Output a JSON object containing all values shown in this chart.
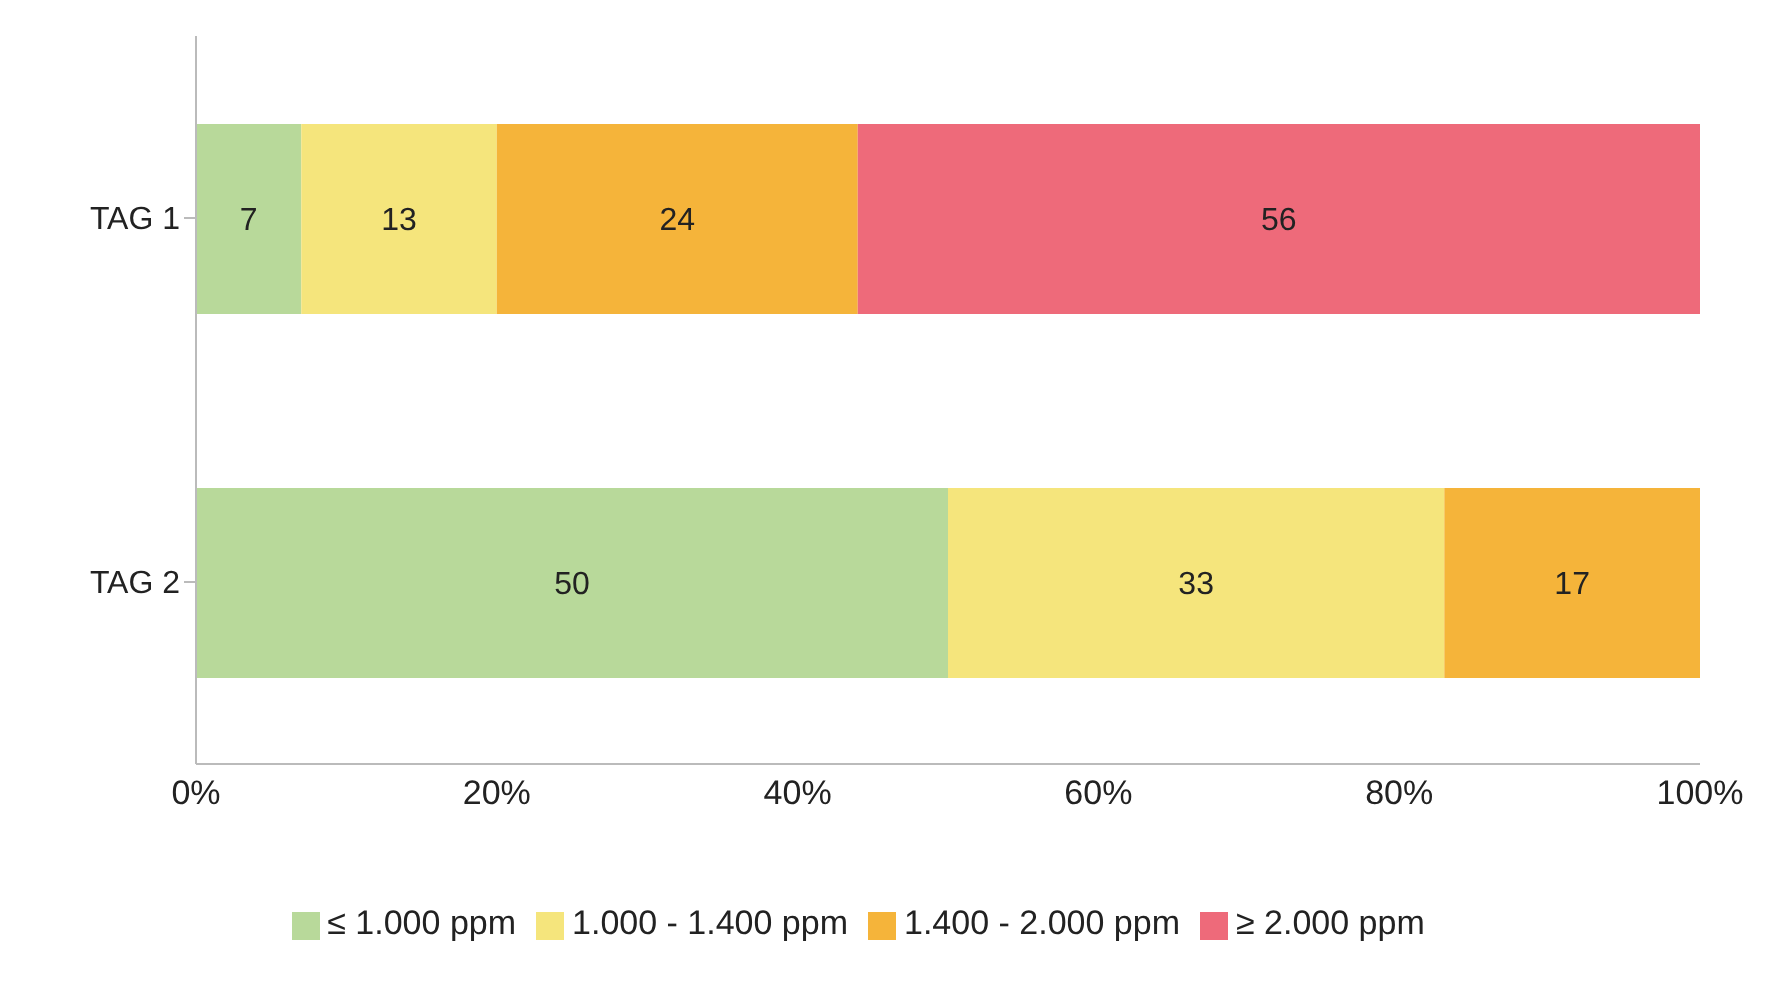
{
  "chart_data": {
    "type": "bar",
    "orientation": "horizontal",
    "stacked": true,
    "categories": [
      "TAG 1",
      "TAG 2"
    ],
    "series": [
      {
        "name": "≤ 1.000 ppm",
        "color": "#b8d99a",
        "values": [
          7,
          50
        ]
      },
      {
        "name": "1.000 - 1.400 ppm",
        "color": "#f5e57c",
        "values": [
          13,
          33
        ]
      },
      {
        "name": "1.400 - 2.000 ppm",
        "color": "#f5b43a",
        "values": [
          24,
          17
        ]
      },
      {
        "name": "≥ 2.000 ppm",
        "color": "#ee6a7a",
        "values": [
          56,
          null
        ]
      }
    ],
    "xlim": [
      0,
      100
    ],
    "xticks": [
      {
        "value": 0,
        "label": "0%"
      },
      {
        "value": 20,
        "label": "20%"
      },
      {
        "value": 40,
        "label": "40%"
      },
      {
        "value": 60,
        "label": "60%"
      },
      {
        "value": 80,
        "label": "80%"
      },
      {
        "value": 100,
        "label": "100%"
      }
    ],
    "data_labels": true,
    "grid": false,
    "legend": "bottom"
  }
}
